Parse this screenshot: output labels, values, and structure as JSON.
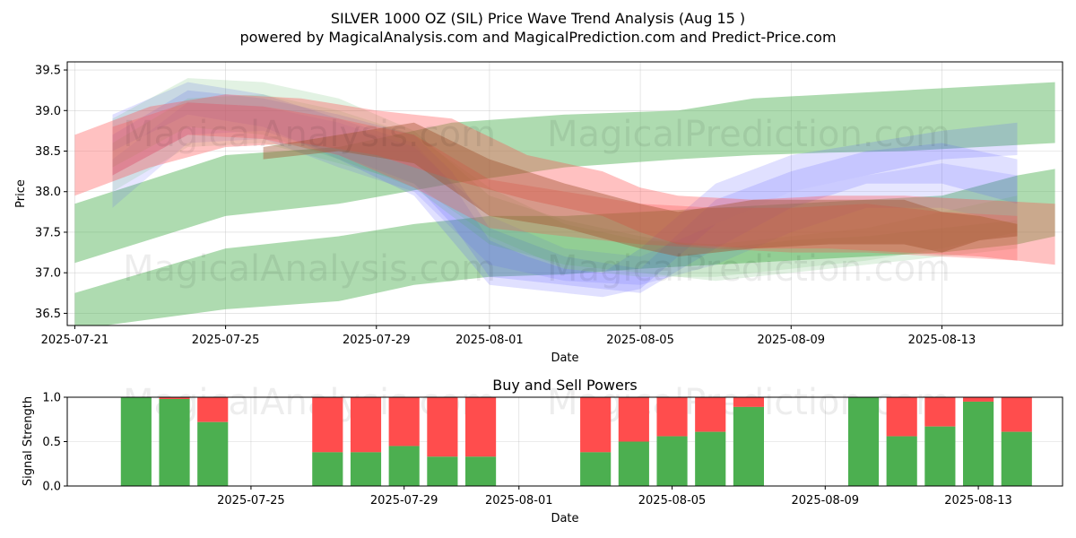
{
  "header": {
    "title": "SILVER 1000 OZ (SIL) Price Wave Trend Analysis (Aug 15 )",
    "subtitle": "powered by MagicalAnalysis.com and MagicalPrediction.com and Predict-Price.com"
  },
  "watermarks": [
    "MagicalAnalysis.com",
    "MagicalPrediction.com",
    "MagicalAnalysis.com",
    "MagicalPrediction.com",
    "MagicalAnalysis.com",
    "MagicalPrediction.com"
  ],
  "chart_data": [
    {
      "type": "area",
      "title": "",
      "xlabel": "Date",
      "ylabel": "Price",
      "xlim": [
        -0.2,
        26.2
      ],
      "ylim": [
        36.35,
        39.6
      ],
      "grid": true,
      "x_ticks": [
        {
          "day": 0,
          "label": "2025-07-21"
        },
        {
          "day": 4,
          "label": "2025-07-25"
        },
        {
          "day": 8,
          "label": "2025-07-29"
        },
        {
          "day": 11,
          "label": "2025-08-01"
        },
        {
          "day": 15,
          "label": "2025-08-05"
        },
        {
          "day": 19,
          "label": "2025-08-09"
        },
        {
          "day": 23,
          "label": "2025-08-13"
        }
      ],
      "y_ticks": [
        36.5,
        37.0,
        37.5,
        38.0,
        38.5,
        39.0,
        39.5
      ],
      "series": [
        {
          "name": "green-upper-band",
          "color": "#4caf50",
          "opacity": 0.45,
          "x": [
            0,
            4,
            7,
            10,
            13,
            16,
            18,
            20,
            22,
            24,
            26
          ],
          "lower": [
            37.12,
            37.7,
            37.85,
            38.1,
            38.3,
            38.4,
            38.45,
            38.48,
            38.5,
            38.55,
            38.6
          ],
          "upper": [
            37.85,
            38.45,
            38.55,
            38.85,
            38.95,
            39.0,
            39.15,
            39.2,
            39.25,
            39.3,
            39.35
          ]
        },
        {
          "name": "green-lower-band",
          "color": "#4caf50",
          "opacity": 0.45,
          "x": [
            0,
            4,
            7,
            9,
            11,
            13,
            15,
            17,
            19,
            21,
            23,
            25,
            26
          ],
          "lower": [
            36.3,
            36.55,
            36.65,
            36.85,
            36.95,
            36.98,
            37.05,
            37.1,
            37.15,
            37.2,
            37.25,
            37.35,
            37.45
          ],
          "upper": [
            36.75,
            37.3,
            37.45,
            37.6,
            37.7,
            37.7,
            37.75,
            37.8,
            37.85,
            37.9,
            37.95,
            38.2,
            38.28
          ]
        },
        {
          "name": "blue-band-1",
          "color": "#5555ff",
          "opacity": 0.18,
          "x": [
            1,
            3,
            5,
            7,
            9,
            10,
            11,
            12,
            13,
            14,
            15,
            17,
            19,
            21,
            23,
            25
          ],
          "lower": [
            38.5,
            38.95,
            38.8,
            38.4,
            37.95,
            37.4,
            36.85,
            36.8,
            36.75,
            36.7,
            36.8,
            37.6,
            38.0,
            38.2,
            38.4,
            38.45
          ],
          "upper": [
            38.95,
            39.35,
            39.2,
            38.9,
            38.6,
            38.1,
            37.4,
            37.2,
            37.05,
            37.0,
            37.3,
            38.1,
            38.45,
            38.6,
            38.75,
            38.85
          ]
        },
        {
          "name": "blue-band-2",
          "color": "#5555ff",
          "opacity": 0.18,
          "x": [
            1,
            3,
            5,
            7,
            9,
            10,
            11,
            13,
            15,
            17,
            19,
            21,
            23,
            25
          ],
          "lower": [
            38.2,
            38.7,
            38.75,
            38.45,
            38.1,
            37.6,
            36.95,
            36.85,
            36.75,
            37.3,
            37.8,
            38.1,
            38.1,
            37.85
          ],
          "upper": [
            38.7,
            39.25,
            39.15,
            38.95,
            38.7,
            38.25,
            37.55,
            37.2,
            37.05,
            37.9,
            38.25,
            38.5,
            38.6,
            38.4
          ]
        },
        {
          "name": "blue-band-3",
          "color": "#5555ff",
          "opacity": 0.15,
          "x": [
            1,
            3,
            5,
            7,
            9,
            11,
            13,
            15,
            17,
            19,
            21,
            23,
            25
          ],
          "lower": [
            37.8,
            38.6,
            38.65,
            38.3,
            38.0,
            37.1,
            36.9,
            36.85,
            37.1,
            37.5,
            37.8,
            37.8,
            37.6
          ],
          "upper": [
            38.4,
            39.1,
            39.05,
            38.85,
            38.55,
            37.7,
            37.3,
            37.2,
            37.6,
            38.0,
            38.2,
            38.35,
            38.2
          ]
        },
        {
          "name": "green-mid-band-1",
          "color": "#4caf50",
          "opacity": 0.16,
          "x": [
            1,
            3,
            5,
            7,
            9,
            11,
            13,
            15,
            17,
            19,
            21,
            23,
            25
          ],
          "lower": [
            38.3,
            38.8,
            38.7,
            38.4,
            38.05,
            37.35,
            37.1,
            37.0,
            36.9,
            37.0,
            37.1,
            37.2,
            37.3
          ],
          "upper": [
            38.9,
            39.4,
            39.35,
            39.15,
            38.75,
            37.95,
            37.65,
            37.45,
            37.3,
            37.4,
            37.45,
            37.55,
            37.65
          ]
        },
        {
          "name": "green-mid-band-2",
          "color": "#4caf50",
          "opacity": 0.14,
          "x": [
            1,
            3,
            5,
            7,
            9,
            11,
            13,
            15,
            17,
            19,
            21,
            23,
            25
          ],
          "lower": [
            38.0,
            38.55,
            38.6,
            38.35,
            38.1,
            37.45,
            37.05,
            36.95,
            36.95,
            37.05,
            37.15,
            37.3,
            37.5
          ],
          "upper": [
            38.6,
            39.15,
            39.2,
            39.0,
            38.7,
            38.05,
            37.6,
            37.4,
            37.35,
            37.45,
            37.55,
            37.75,
            37.95
          ]
        },
        {
          "name": "red-band-1",
          "color": "#ff4d4d",
          "opacity": 0.35,
          "x": [
            0,
            2,
            4,
            6,
            8,
            10,
            12,
            14,
            15,
            16,
            18,
            20,
            22,
            24,
            26
          ],
          "lower": [
            37.95,
            38.3,
            38.55,
            38.6,
            38.45,
            38.15,
            37.9,
            37.7,
            37.5,
            37.35,
            37.3,
            37.3,
            37.25,
            37.2,
            37.1
          ],
          "upper": [
            38.7,
            39.05,
            39.2,
            39.15,
            39.0,
            38.9,
            38.45,
            38.25,
            38.05,
            37.95,
            37.9,
            37.95,
            37.95,
            37.9,
            37.85
          ]
        },
        {
          "name": "red-band-2",
          "color": "#ff4d4d",
          "opacity": 0.28,
          "x": [
            1,
            3,
            5,
            7,
            9,
            11,
            13,
            15,
            17,
            19,
            21,
            23,
            25
          ],
          "lower": [
            38.2,
            38.7,
            38.65,
            38.45,
            38.05,
            37.55,
            37.45,
            37.35,
            37.3,
            37.25,
            37.25,
            37.2,
            37.15
          ],
          "upper": [
            38.8,
            39.1,
            39.05,
            38.9,
            38.7,
            38.15,
            38.0,
            37.85,
            37.8,
            37.8,
            37.85,
            37.75,
            37.7
          ]
        },
        {
          "name": "brown-band",
          "color": "#a0522d",
          "opacity": 0.42,
          "x": [
            5,
            7,
            9,
            11,
            13,
            15,
            16,
            18,
            20,
            22,
            23,
            24,
            25
          ],
          "lower": [
            38.4,
            38.5,
            38.35,
            37.7,
            37.55,
            37.3,
            37.2,
            37.3,
            37.35,
            37.35,
            37.25,
            37.4,
            37.45
          ],
          "upper": [
            38.55,
            38.7,
            38.85,
            38.4,
            38.1,
            37.85,
            37.75,
            37.9,
            37.9,
            37.9,
            37.75,
            37.7,
            37.6
          ]
        }
      ]
    },
    {
      "type": "bar",
      "title": "Buy and Sell Powers",
      "xlabel": "Date",
      "ylabel": "Signal Strength",
      "xlim": [
        -0.8,
        25.2
      ],
      "ylim": [
        0,
        1
      ],
      "grid": true,
      "y_ticks": [
        0.0,
        0.5,
        1.0
      ],
      "x_ticks": [
        {
          "day": 4,
          "label": "2025-07-25"
        },
        {
          "day": 8,
          "label": "2025-07-29"
        },
        {
          "day": 11,
          "label": "2025-08-01"
        },
        {
          "day": 15,
          "label": "2025-08-05"
        },
        {
          "day": 19,
          "label": "2025-08-09"
        },
        {
          "day": 23,
          "label": "2025-08-13"
        }
      ],
      "series": [
        {
          "name": "Buy",
          "color": "#4caf50"
        },
        {
          "name": "Sell",
          "color": "#ff4d4d"
        }
      ],
      "bars": [
        {
          "day": 1,
          "buy": 1.0
        },
        {
          "day": 2,
          "buy": 0.98
        },
        {
          "day": 3,
          "buy": 0.72
        },
        {
          "day": 6,
          "buy": 0.38
        },
        {
          "day": 7,
          "buy": 0.38
        },
        {
          "day": 8,
          "buy": 0.45
        },
        {
          "day": 9,
          "buy": 0.33
        },
        {
          "day": 10,
          "buy": 0.33
        },
        {
          "day": 13,
          "buy": 0.38
        },
        {
          "day": 14,
          "buy": 0.5
        },
        {
          "day": 15,
          "buy": 0.56
        },
        {
          "day": 16,
          "buy": 0.61
        },
        {
          "day": 17,
          "buy": 0.89
        },
        {
          "day": 20,
          "buy": 1.0
        },
        {
          "day": 21,
          "buy": 0.56
        },
        {
          "day": 22,
          "buy": 0.67
        },
        {
          "day": 23,
          "buy": 0.95
        },
        {
          "day": 24,
          "buy": 0.61
        }
      ]
    }
  ]
}
